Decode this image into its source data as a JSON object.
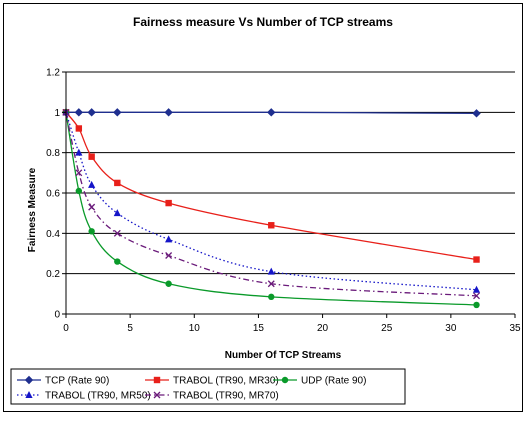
{
  "chart_data": {
    "type": "line",
    "title": "Fairness measure  Vs Number of TCP streams",
    "xlabel": "Number Of TCP Streams",
    "ylabel": "Fairness Measure",
    "xlim": [
      0,
      35
    ],
    "ylim": [
      0,
      1.2
    ],
    "xticks": [
      "0",
      "5",
      "10",
      "15",
      "20",
      "25",
      "30",
      "35"
    ],
    "yticks": [
      "0",
      "0.2",
      "0.4",
      "0.6",
      "0.8",
      "1",
      "1.2"
    ],
    "grid": "horizontal",
    "legend_position": "bottom",
    "series": [
      {
        "name": "TCP (Rate 90)",
        "color": "#1f2f8f",
        "marker": "diamond",
        "dash": "solid",
        "x": [
          0,
          1,
          2,
          4,
          8,
          16,
          32
        ],
        "y": [
          1.0,
          1.0,
          1.0,
          1.0,
          1.0,
          1.0,
          0.995
        ]
      },
      {
        "name": "TRABOL (TR90, MR30)",
        "color": "#e8201a",
        "marker": "square",
        "dash": "solid",
        "x": [
          0,
          1,
          2,
          4,
          8,
          16,
          32
        ],
        "y": [
          1.0,
          0.92,
          0.78,
          0.65,
          0.55,
          0.44,
          0.27
        ]
      },
      {
        "name": "UDP (Rate 90)",
        "color": "#0a9a2a",
        "marker": "circle",
        "dash": "solid",
        "x": [
          0,
          1,
          2,
          4,
          8,
          16,
          32
        ],
        "y": [
          1.0,
          0.61,
          0.41,
          0.26,
          0.15,
          0.085,
          0.045
        ]
      },
      {
        "name": "TRABOL (TR90, MR50)",
        "color": "#1515c8",
        "marker": "triangle",
        "dash": "dotted",
        "x": [
          0,
          1,
          2,
          4,
          8,
          16,
          32
        ],
        "y": [
          1.0,
          0.8,
          0.64,
          0.5,
          0.37,
          0.21,
          0.12
        ]
      },
      {
        "name": "TRABOL (TR90, MR70)",
        "color": "#6a1a7a",
        "marker": "x",
        "dash": "dashdot",
        "x": [
          0,
          1,
          2,
          4,
          8,
          16,
          32
        ],
        "y": [
          1.0,
          0.7,
          0.53,
          0.4,
          0.29,
          0.15,
          0.09
        ]
      }
    ]
  }
}
